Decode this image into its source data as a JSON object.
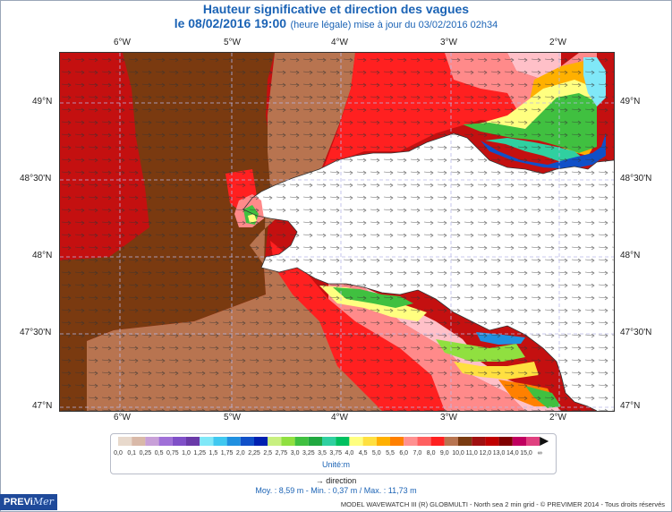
{
  "title": "Hauteur significative et direction des vagues",
  "subtitle": {
    "datetime": "le 08/02/2016 19:00",
    "update_note": "(heure légale) mise à jour du 03/02/2016 02h34"
  },
  "axes": {
    "longitude_labels": [
      "6°W",
      "5°W",
      "4°W",
      "3°W",
      "2°W"
    ],
    "latitude_labels": [
      "49°N",
      "48°30'N",
      "48°N",
      "47°30'N",
      "47°N"
    ]
  },
  "legend": {
    "units_label": "Unité:m",
    "direction_label": "→ direction",
    "class_labels": [
      "0,0",
      "0,1",
      "0,25",
      "0,5",
      "0,75",
      "1,0",
      "1,25",
      "1,5",
      "1,75",
      "2,0",
      "2,25",
      "2,5",
      "2,75",
      "3,0",
      "3,25",
      "3,5",
      "3,75",
      "4,0",
      "4,5",
      "5,0",
      "5,5",
      "6,0",
      "7,0",
      "8,0",
      "9,0",
      "10,0",
      "11,0",
      "12,0",
      "13,0",
      "14,0",
      "15,0",
      "∞"
    ],
    "class_colors": [
      "#e8d9cc",
      "#d9b9a8",
      "#c8a0d8",
      "#a070d8",
      "#8050c8",
      "#6a3aa8",
      "#80e8f8",
      "#40c8f0",
      "#2090e0",
      "#1050c8",
      "#0020b0",
      "#c8f080",
      "#90e040",
      "#40c040",
      "#20a840",
      "#30d0a0",
      "#00c060",
      "#ffff80",
      "#ffe040",
      "#ffb000",
      "#ff8000",
      "#ff9090",
      "#ff6060",
      "#ff2020",
      "#b87450",
      "#7a3a10",
      "#a01010",
      "#c00000",
      "#800000",
      "#c00060",
      "#e04080"
    ],
    "stats": "Moy. : 8,59 m   -   Min. : 0,37 m / Max. : 11,73 m"
  },
  "brand": {
    "logo_text": "PREVi",
    "logo_italic": "Mer"
  },
  "footer": "MODEL WAVEWATCH III (R) GLOBMULTI - North sea 2 min grid - © PREVIMER 2014 - Tous droits réservés"
}
